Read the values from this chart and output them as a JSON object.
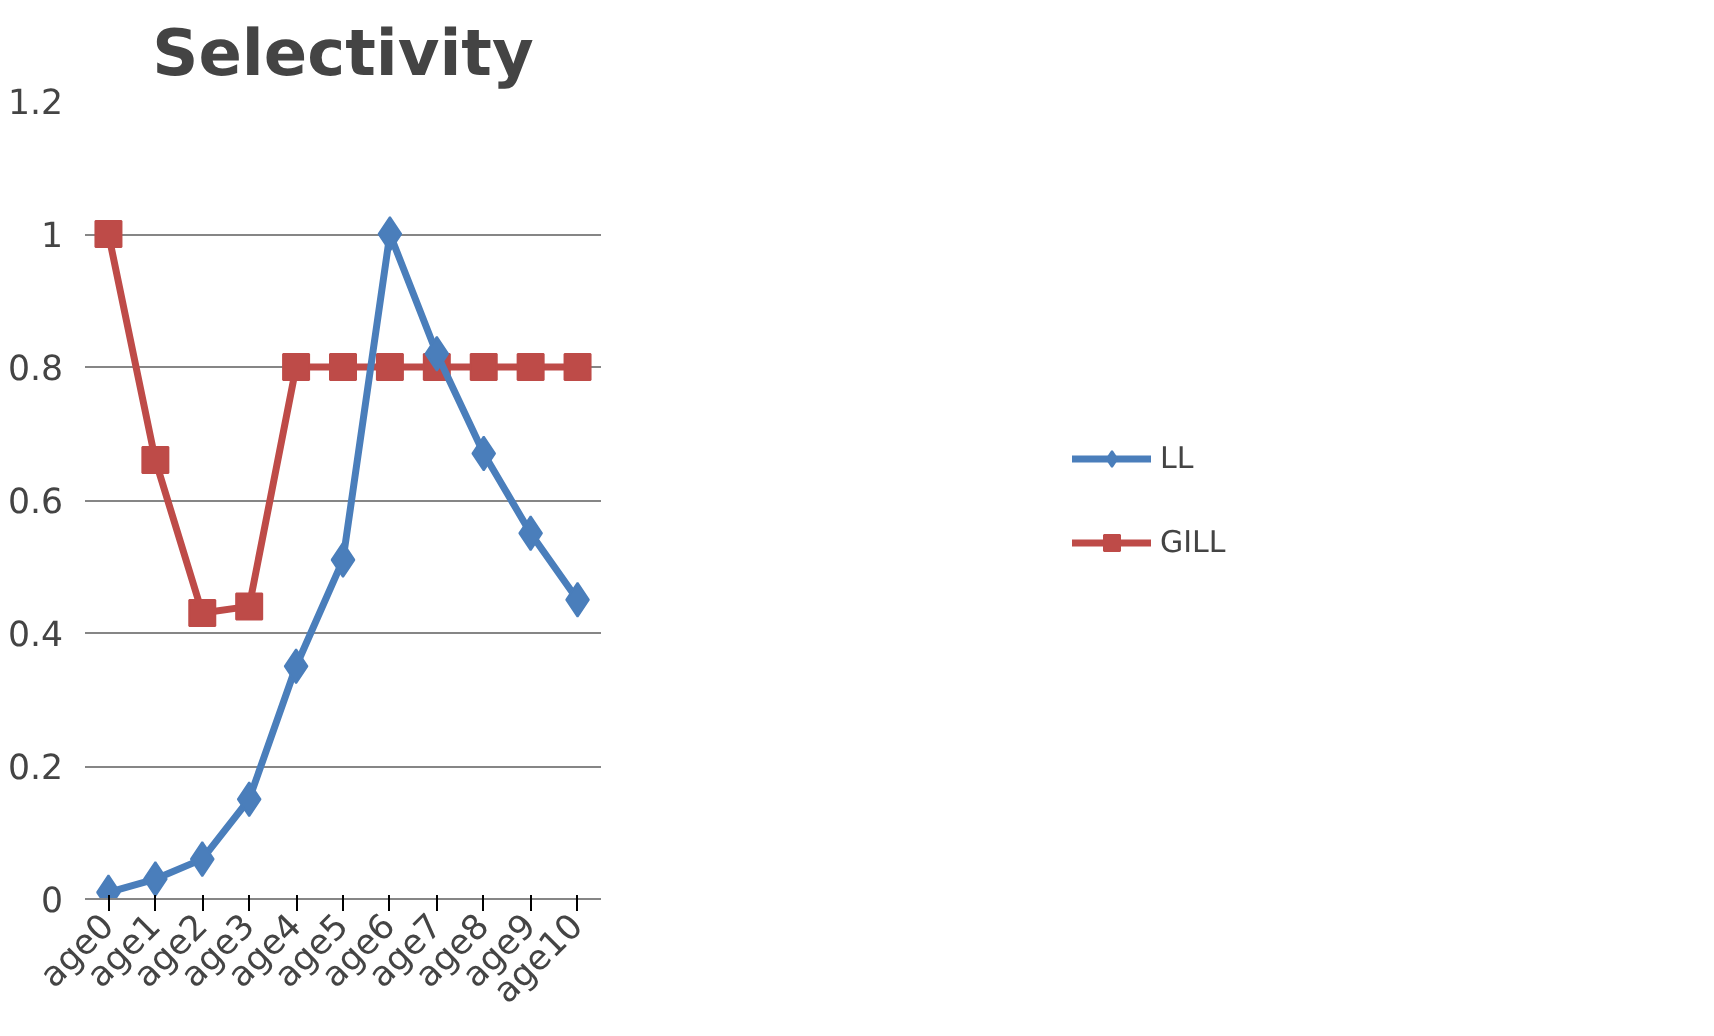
{
  "chart_data": {
    "type": "line",
    "title": "Selectivity",
    "categories": [
      "age0",
      "age1",
      "age2",
      "age3",
      "age4",
      "age5",
      "age6",
      "age7",
      "age8",
      "age9",
      "age10"
    ],
    "series": [
      {
        "name": "LL",
        "color": "#4a7ebb",
        "marker": "diamond",
        "values": [
          0.01,
          0.03,
          0.06,
          0.15,
          0.35,
          0.51,
          1.0,
          0.82,
          0.67,
          0.55,
          0.45
        ]
      },
      {
        "name": "GILL",
        "color": "#be4b48",
        "marker": "square",
        "values": [
          1.0,
          0.66,
          0.43,
          0.44,
          0.8,
          0.8,
          0.8,
          0.8,
          0.8,
          0.8,
          0.8
        ]
      }
    ],
    "ylim": [
      0,
      1.2
    ],
    "yticks": [
      0,
      0.2,
      0.4,
      0.6,
      0.8,
      1,
      1.2
    ],
    "grid": "y",
    "legend": "right",
    "line_style": "solid"
  }
}
